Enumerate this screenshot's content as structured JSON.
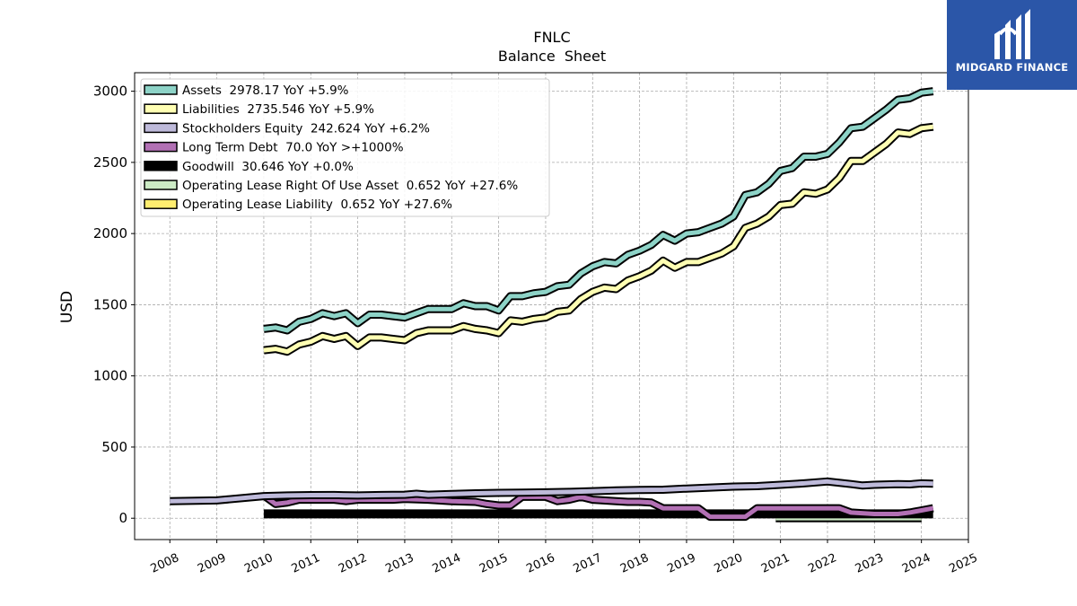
{
  "logo": {
    "text": "MIDGARD FINANCE",
    "color": "#2b56a8"
  },
  "chart_data": {
    "type": "line",
    "title": "FNLC",
    "subtitle": "Balance  Sheet",
    "ylabel": "USD",
    "xlabel": "",
    "xlim": [
      2007.25,
      2025.0
    ],
    "ylim": [
      -150,
      3130
    ],
    "yticks": [
      0,
      500,
      1000,
      1500,
      2000,
      2500,
      3000
    ],
    "xticks": [
      2008,
      2009,
      2010,
      2011,
      2012,
      2013,
      2014,
      2015,
      2016,
      2017,
      2018,
      2019,
      2020,
      2021,
      2022,
      2023,
      2024,
      2025
    ],
    "grid": true,
    "legend_position": "top-left",
    "series": [
      {
        "name": "Assets",
        "legend": "Assets  2978.17 YoY +5.9%",
        "color": "#8dd3c7",
        "x": [
          2010.0,
          2010.25,
          2010.5,
          2010.75,
          2011.0,
          2011.25,
          2011.5,
          2011.75,
          2012.0,
          2012.25,
          2012.5,
          2012.75,
          2013.0,
          2013.25,
          2013.5,
          2013.75,
          2014.0,
          2014.25,
          2014.5,
          2014.75,
          2015.0,
          2015.25,
          2015.5,
          2015.75,
          2016.0,
          2016.25,
          2016.5,
          2016.75,
          2017.0,
          2017.25,
          2017.5,
          2017.75,
          2018.0,
          2018.25,
          2018.5,
          2018.75,
          2019.0,
          2019.25,
          2019.5,
          2019.75,
          2020.0,
          2020.25,
          2020.5,
          2020.75,
          2021.0,
          2021.25,
          2021.5,
          2021.75,
          2022.0,
          2022.25,
          2022.5,
          2022.75,
          2023.0,
          2023.25,
          2023.5,
          2023.75,
          2024.0,
          2024.25
        ],
        "y": [
          1330,
          1340,
          1320,
          1380,
          1400,
          1440,
          1420,
          1440,
          1370,
          1430,
          1430,
          1420,
          1410,
          1440,
          1470,
          1470,
          1470,
          1510,
          1490,
          1490,
          1460,
          1560,
          1560,
          1580,
          1590,
          1630,
          1640,
          1720,
          1770,
          1800,
          1790,
          1850,
          1880,
          1920,
          1990,
          1950,
          2000,
          2010,
          2040,
          2070,
          2120,
          2270,
          2290,
          2350,
          2440,
          2460,
          2540,
          2540,
          2560,
          2640,
          2740,
          2750,
          2810,
          2870,
          2940,
          2950,
          2990,
          3000
        ]
      },
      {
        "name": "Liabilities",
        "legend": "Liabilities  2735.546 YoY +5.9%",
        "color": "#ffffb3",
        "x": [
          2010.0,
          2010.25,
          2010.5,
          2010.75,
          2011.0,
          2011.25,
          2011.5,
          2011.75,
          2012.0,
          2012.25,
          2012.5,
          2012.75,
          2013.0,
          2013.25,
          2013.5,
          2013.75,
          2014.0,
          2014.25,
          2014.5,
          2014.75,
          2015.0,
          2015.25,
          2015.5,
          2015.75,
          2016.0,
          2016.25,
          2016.5,
          2016.75,
          2017.0,
          2017.25,
          2017.5,
          2017.75,
          2018.0,
          2018.25,
          2018.5,
          2018.75,
          2019.0,
          2019.25,
          2019.5,
          2019.75,
          2020.0,
          2020.25,
          2020.5,
          2020.75,
          2021.0,
          2021.25,
          2021.5,
          2021.75,
          2022.0,
          2022.25,
          2022.5,
          2022.75,
          2023.0,
          2023.25,
          2023.5,
          2023.75,
          2024.0,
          2024.25
        ],
        "y": [
          1180,
          1190,
          1170,
          1220,
          1240,
          1280,
          1260,
          1280,
          1210,
          1270,
          1270,
          1260,
          1250,
          1300,
          1320,
          1320,
          1320,
          1350,
          1330,
          1320,
          1300,
          1390,
          1380,
          1400,
          1410,
          1450,
          1460,
          1540,
          1590,
          1620,
          1610,
          1670,
          1700,
          1740,
          1810,
          1760,
          1800,
          1800,
          1830,
          1860,
          1910,
          2040,
          2070,
          2120,
          2200,
          2210,
          2290,
          2280,
          2310,
          2390,
          2510,
          2510,
          2570,
          2630,
          2710,
          2700,
          2740,
          2750
        ]
      },
      {
        "name": "Stockholders Equity",
        "legend": "Stockholders Equity  242.624 YoY +6.2%",
        "color": "#bebada",
        "x": [
          2008.0,
          2009.0,
          2010.0,
          2010.5,
          2011.0,
          2011.5,
          2012.0,
          2012.5,
          2013.0,
          2013.25,
          2013.5,
          2014.0,
          2014.5,
          2015.0,
          2015.5,
          2016.0,
          2016.5,
          2017.0,
          2017.5,
          2018.0,
          2018.5,
          2019.0,
          2019.5,
          2020.0,
          2020.5,
          2021.0,
          2021.5,
          2022.0,
          2022.5,
          2022.75,
          2023.0,
          2023.5,
          2023.75,
          2024.0,
          2024.25
        ],
        "y": [
          120,
          125,
          155,
          160,
          162,
          163,
          160,
          163,
          165,
          172,
          165,
          170,
          175,
          178,
          180,
          182,
          185,
          190,
          195,
          198,
          200,
          208,
          215,
          222,
          225,
          235,
          245,
          258,
          240,
          230,
          235,
          240,
          238,
          245,
          243
        ]
      },
      {
        "name": "Long Term Debt",
        "legend": "Long Term Debt  70.0 YoY >+1000%",
        "color": "#b270b4",
        "x": [
          2010.0,
          2010.25,
          2010.5,
          2010.75,
          2011.0,
          2011.5,
          2011.75,
          2012.0,
          2012.5,
          2012.75,
          2013.0,
          2013.5,
          2014.0,
          2014.5,
          2014.75,
          2015.0,
          2015.25,
          2015.5,
          2015.75,
          2016.0,
          2016.25,
          2016.5,
          2016.75,
          2017.0,
          2017.5,
          2017.75,
          2018.0,
          2018.25,
          2018.5,
          2018.75,
          2019.0,
          2019.25,
          2019.5,
          2019.75,
          2020.0,
          2020.25,
          2020.5,
          2021.0,
          2021.5,
          2022.0,
          2022.25,
          2022.5,
          2023.0,
          2023.5,
          2023.75,
          2024.0,
          2024.25
        ],
        "y": [
          160,
          100,
          110,
          130,
          130,
          130,
          120,
          130,
          130,
          130,
          135,
          130,
          120,
          115,
          100,
          90,
          90,
          150,
          150,
          150,
          120,
          130,
          150,
          130,
          120,
          115,
          115,
          110,
          70,
          70,
          70,
          70,
          10,
          10,
          10,
          10,
          70,
          70,
          70,
          70,
          70,
          40,
          30,
          30,
          40,
          55,
          70
        ]
      },
      {
        "name": "Goodwill",
        "legend": "Goodwill  30.646 YoY +0.0%",
        "color": "#000000",
        "x": [
          2010.0,
          2024.25
        ],
        "y": [
          30.646,
          30.646
        ]
      },
      {
        "name": "Operating Lease Right Of Use Asset",
        "legend": "Operating Lease Right Of Use Asset  0.652 YoY +27.6%",
        "color": "#ccebc5",
        "x": [
          2020.9,
          2024.0
        ],
        "y": [
          0.5,
          0.652
        ]
      },
      {
        "name": "Operating Lease Liability",
        "legend": "Operating Lease Liability  0.652 YoY +27.6%",
        "color": "#ffed6f",
        "x": [
          2020.9,
          2024.0
        ],
        "y": [
          0.5,
          0.652
        ]
      }
    ]
  }
}
